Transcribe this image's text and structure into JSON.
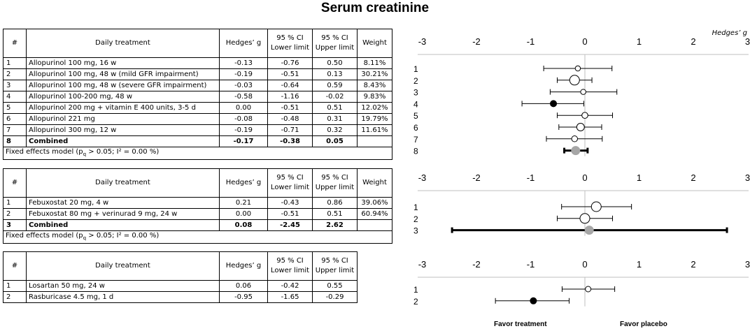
{
  "title": "Serum creatinine",
  "axis_label": "Hedges’ g",
  "headers": {
    "num": "#",
    "treatment": "Daily treatment",
    "hedges": "Hedges’ g",
    "lower": "95 % CI Lower limit",
    "upper": "95 % CI Upper limit",
    "weight": "Weight"
  },
  "favor_treatment": "Favor treatment",
  "favor_placebo": "Favor placebo",
  "chart_data": {
    "type": "forest",
    "xlim": [
      -3,
      3
    ],
    "xticks": [
      -3,
      -2,
      -1,
      0,
      1,
      2,
      3
    ],
    "xlabel": "Hedges’ g",
    "groups": [
      {
        "model": "Fixed effects model (pₐ > 0.05; I² = 0.00 %)",
        "model_pre": "Fixed effects model (p",
        "model_sub": "q",
        "model_post": " > 0.05; I² = 0.00 %)",
        "rows": [
          {
            "n": "1",
            "treatment": "Allopurinol 100 mg, 16 w",
            "g": -0.13,
            "lower": -0.76,
            "upper": 0.5,
            "weight": "8.11%",
            "marker": "open"
          },
          {
            "n": "2",
            "treatment": "Allopurinol 100 mg, 48 w (mild GFR impairment)",
            "g": -0.19,
            "lower": -0.51,
            "upper": 0.13,
            "weight": "30.21%",
            "marker": "open"
          },
          {
            "n": "3",
            "treatment": "Allopurinol 100 mg, 48 w (severe GFR impairment)",
            "g": -0.03,
            "lower": -0.64,
            "upper": 0.59,
            "weight": "8.43%",
            "marker": "open"
          },
          {
            "n": "4",
            "treatment": "Allopurinol 100-200 mg, 48 w",
            "g": -0.58,
            "lower": -1.16,
            "upper": -0.02,
            "weight": "9.83%",
            "marker": "filled"
          },
          {
            "n": "5",
            "treatment": "Allopurinol 200 mg + vitamin E 400 units, 3-5 d",
            "g": 0.0,
            "lower": -0.51,
            "upper": 0.51,
            "weight": "12.02%",
            "marker": "open"
          },
          {
            "n": "6",
            "treatment": "Allopurinol 221 mg",
            "g": -0.08,
            "lower": -0.48,
            "upper": 0.31,
            "weight": "19.79%",
            "marker": "open"
          },
          {
            "n": "7",
            "treatment": "Allopurinol 300 mg, 12 w",
            "g": -0.19,
            "lower": -0.71,
            "upper": 0.32,
            "weight": "11.61%",
            "marker": "open"
          },
          {
            "n": "8",
            "treatment": "Combined",
            "g": -0.17,
            "lower": -0.38,
            "upper": 0.05,
            "weight": "",
            "marker": "combined",
            "bold": true
          }
        ]
      },
      {
        "model": "Fixed effects model (pₐ > 0.05; I² = 0.00 %)",
        "model_pre": "Fixed effects model (p",
        "model_sub": "q",
        "model_post": " > 0.05; I² = 0.00 %)",
        "rows": [
          {
            "n": "1",
            "treatment": "Febuxostat 20 mg, 4 w",
            "g": 0.21,
            "lower": -0.43,
            "upper": 0.86,
            "weight": "39.06%",
            "marker": "open"
          },
          {
            "n": "2",
            "treatment": "Febuxostat 80 mg + verinurad 9 mg, 24 w",
            "g": 0.0,
            "lower": -0.51,
            "upper": 0.51,
            "weight": "60.94%",
            "marker": "open"
          },
          {
            "n": "3",
            "treatment": "Combined",
            "g": 0.08,
            "lower": -2.45,
            "upper": 2.62,
            "weight": "",
            "marker": "combined",
            "bold": true
          }
        ]
      },
      {
        "model": "",
        "rows": [
          {
            "n": "1",
            "treatment": "Losartan 50 mg, 24 w",
            "g": 0.06,
            "lower": -0.42,
            "upper": 0.55,
            "weight": "",
            "marker": "open"
          },
          {
            "n": "2",
            "treatment": "Rasburicase 4.5 mg, 1 d",
            "g": -0.95,
            "lower": -1.65,
            "upper": -0.29,
            "weight": "",
            "marker": "filled"
          }
        ]
      }
    ]
  }
}
